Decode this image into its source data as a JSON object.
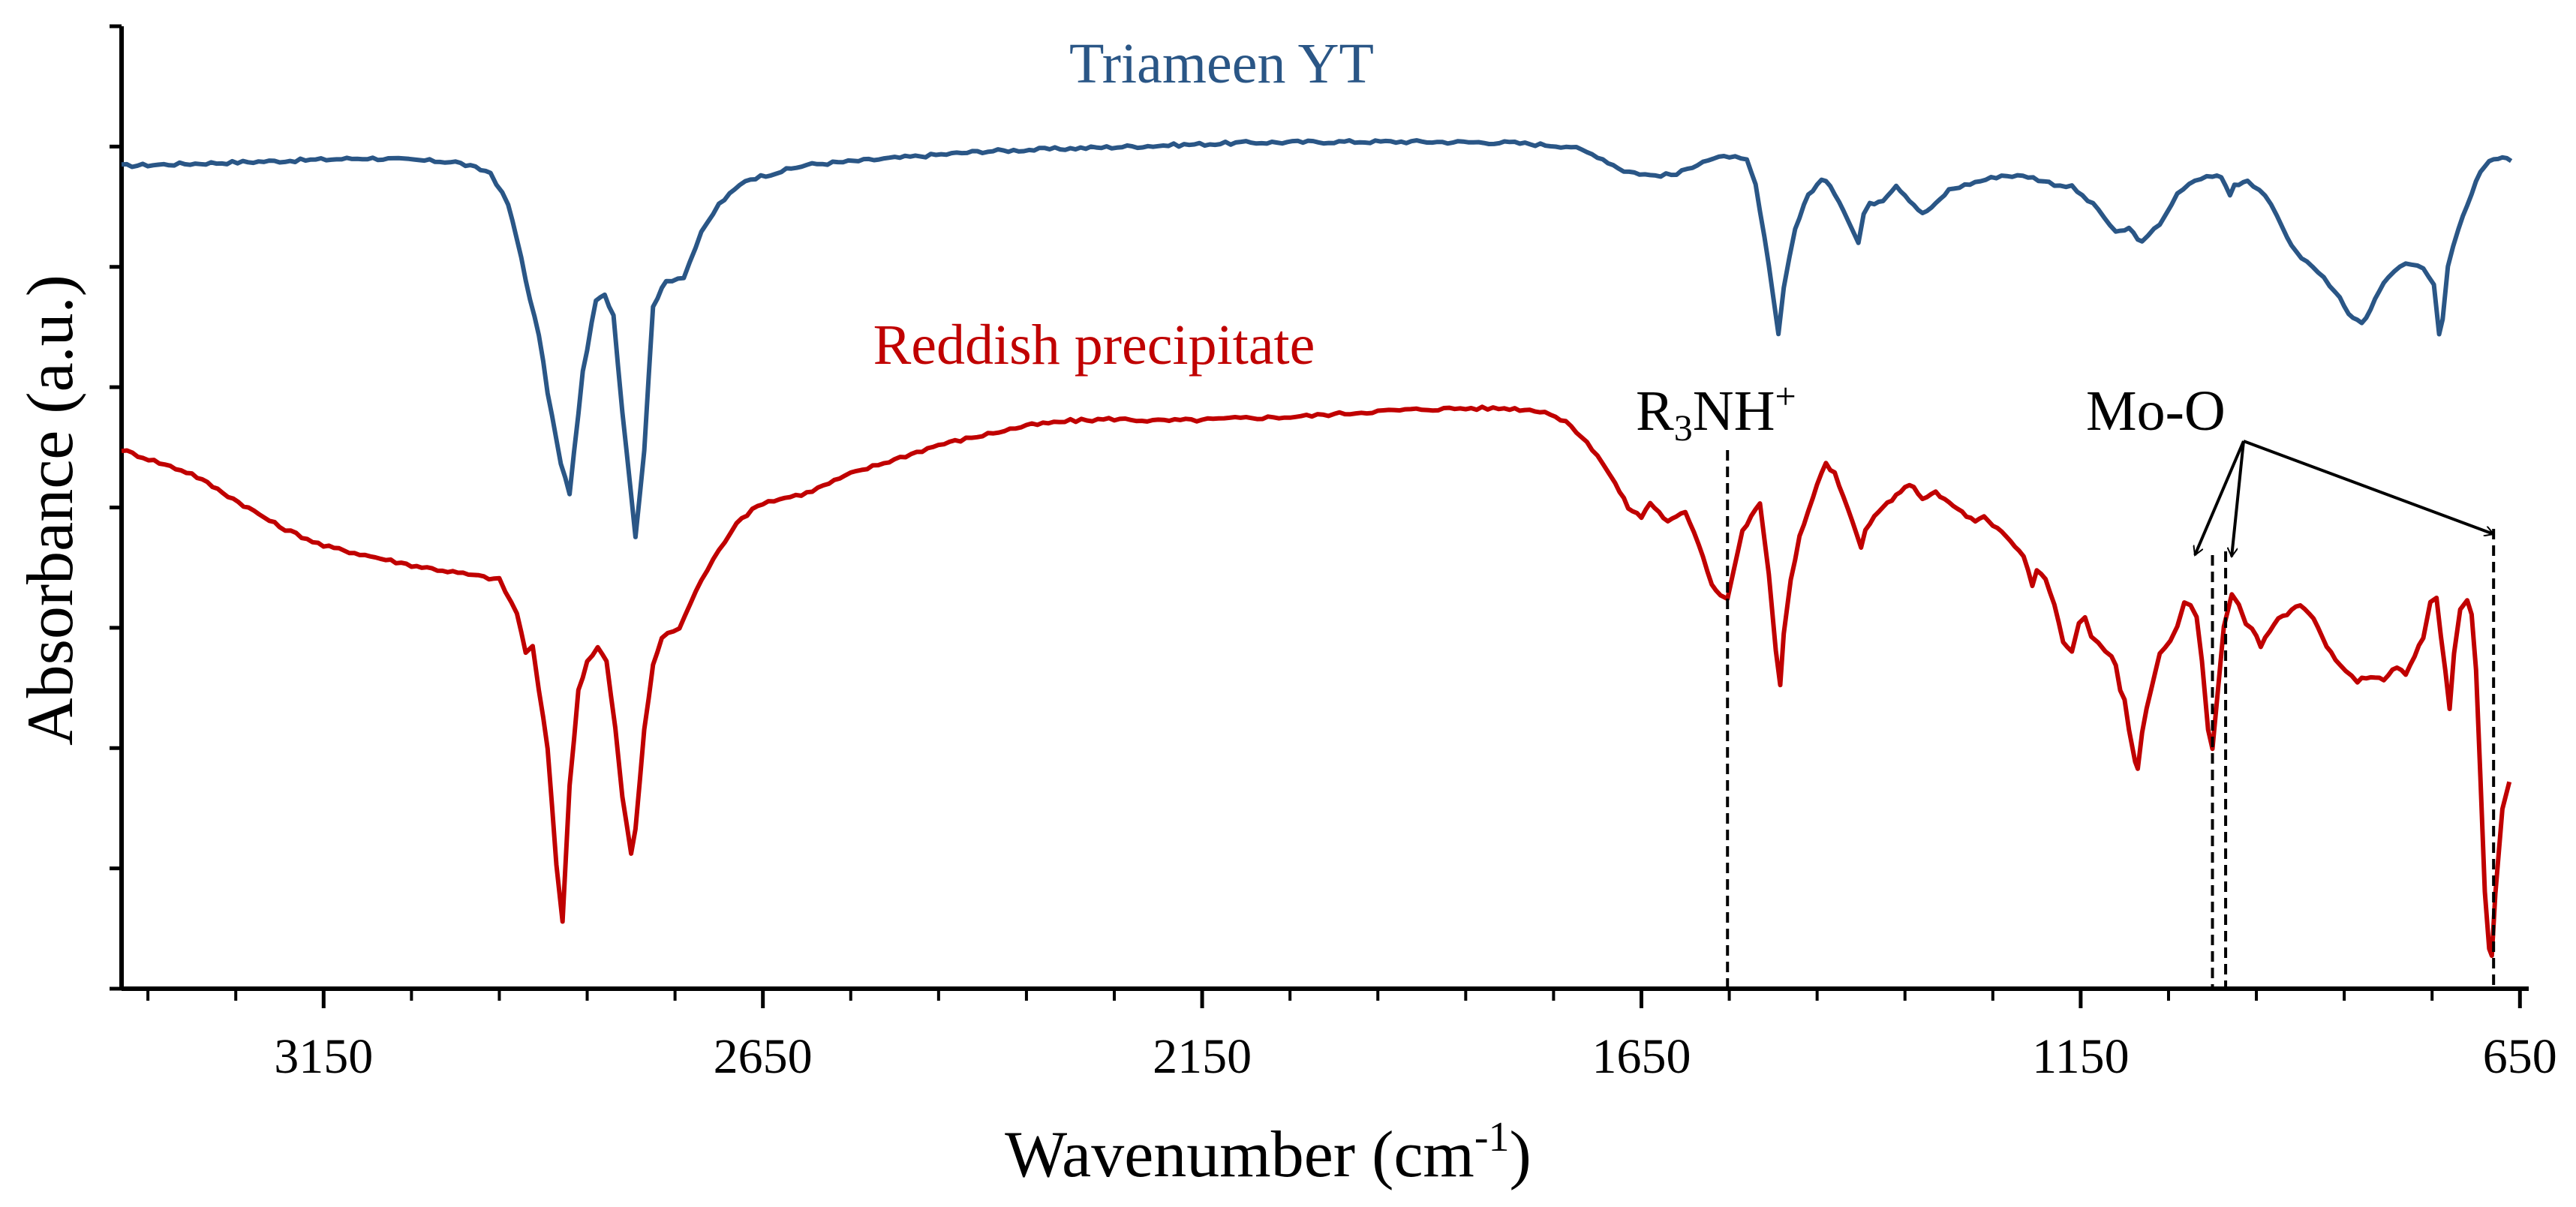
{
  "chart_data": {
    "type": "line",
    "title": "",
    "xlabel": "Wavenumber (cm",
    "xlabel_sup": "-1",
    "xlabel_end": ")",
    "ylabel": "Absorbance (a.u.)",
    "xlim": [
      3380,
      640
    ],
    "x_reversed": true,
    "ylim": [
      0,
      100
    ],
    "x_ticks": [
      3150,
      2650,
      2150,
      1650,
      1150,
      650
    ],
    "x_minor_step": 100,
    "y_ticks": [
      0,
      12.5,
      25,
      37.5,
      50,
      62.5,
      75,
      87.5,
      100
    ],
    "y_tick_labels": false,
    "grid": false,
    "series": [
      {
        "name": "Triameen YT",
        "color": "#2a5686",
        "points": [
          [
            3380,
            85.5
          ],
          [
            3200,
            86.0
          ],
          [
            3100,
            86.3
          ],
          [
            3000,
            85.9
          ],
          [
            2960,
            84.8
          ],
          [
            2940,
            81.5
          ],
          [
            2925,
            76.0
          ],
          [
            2915,
            71.5
          ],
          [
            2905,
            68.0
          ],
          [
            2895,
            62.0
          ],
          [
            2880,
            54.5
          ],
          [
            2870,
            51.5
          ],
          [
            2855,
            64.0
          ],
          [
            2840,
            71.5
          ],
          [
            2830,
            72.0
          ],
          [
            2820,
            70.0
          ],
          [
            2810,
            60.0
          ],
          [
            2800,
            51.5
          ],
          [
            2795,
            47.0
          ],
          [
            2785,
            56.0
          ],
          [
            2775,
            71.0
          ],
          [
            2760,
            73.5
          ],
          [
            2740,
            74.0
          ],
          [
            2720,
            78.5
          ],
          [
            2700,
            81.5
          ],
          [
            2670,
            84.0
          ],
          [
            2600,
            85.6
          ],
          [
            2500,
            86.3
          ],
          [
            2400,
            87.0
          ],
          [
            2300,
            87.3
          ],
          [
            2200,
            87.6
          ],
          [
            2100,
            87.9
          ],
          [
            2000,
            88.0
          ],
          [
            1900,
            88.0
          ],
          [
            1800,
            87.9
          ],
          [
            1730,
            87.5
          ],
          [
            1700,
            86.5
          ],
          [
            1670,
            85.0
          ],
          [
            1640,
            84.5
          ],
          [
            1610,
            84.6
          ],
          [
            1580,
            86.0
          ],
          [
            1550,
            86.5
          ],
          [
            1530,
            86.0
          ],
          [
            1520,
            83.5
          ],
          [
            1510,
            78.0
          ],
          [
            1500,
            72.0
          ],
          [
            1494,
            68.0
          ],
          [
            1488,
            73.0
          ],
          [
            1475,
            79.0
          ],
          [
            1460,
            82.5
          ],
          [
            1445,
            84.0
          ],
          [
            1435,
            83.5
          ],
          [
            1420,
            81.0
          ],
          [
            1408,
            78.5
          ],
          [
            1403,
            77.5
          ],
          [
            1397,
            80.5
          ],
          [
            1390,
            81.5
          ],
          [
            1375,
            82.0
          ],
          [
            1360,
            83.5
          ],
          [
            1345,
            82.0
          ],
          [
            1330,
            80.5
          ],
          [
            1315,
            81.5
          ],
          [
            1300,
            83.0
          ],
          [
            1270,
            83.8
          ],
          [
            1240,
            84.5
          ],
          [
            1210,
            84.4
          ],
          [
            1180,
            83.6
          ],
          [
            1160,
            83.3
          ],
          [
            1130,
            81.0
          ],
          [
            1110,
            78.5
          ],
          [
            1095,
            79.0
          ],
          [
            1080,
            77.5
          ],
          [
            1060,
            79.5
          ],
          [
            1040,
            82.5
          ],
          [
            1020,
            84.0
          ],
          [
            1000,
            84.5
          ],
          [
            990,
            84.3
          ],
          [
            980,
            82.5
          ],
          [
            975,
            83.5
          ],
          [
            960,
            84.0
          ],
          [
            940,
            82.5
          ],
          [
            920,
            79.0
          ],
          [
            905,
            76.5
          ],
          [
            880,
            74.5
          ],
          [
            860,
            72.5
          ],
          [
            845,
            70.0
          ],
          [
            830,
            69.0
          ],
          [
            815,
            71.5
          ],
          [
            800,
            74.0
          ],
          [
            780,
            75.5
          ],
          [
            760,
            75.0
          ],
          [
            748,
            73.0
          ],
          [
            742,
            68.0
          ],
          [
            738,
            69.5
          ],
          [
            732,
            75.0
          ],
          [
            720,
            79.0
          ],
          [
            705,
            82.5
          ],
          [
            695,
            85.0
          ],
          [
            685,
            86.0
          ],
          [
            670,
            86.3
          ],
          [
            660,
            86.0
          ]
        ]
      },
      {
        "name": "Reddish precipitate",
        "color": "#c00000",
        "points": [
          [
            3380,
            56.0
          ],
          [
            3300,
            53.5
          ],
          [
            3200,
            48.0
          ],
          [
            3150,
            46.0
          ],
          [
            3050,
            44.0
          ],
          [
            2950,
            42.5
          ],
          [
            2930,
            39.0
          ],
          [
            2920,
            35.0
          ],
          [
            2912,
            35.5
          ],
          [
            2905,
            31.0
          ],
          [
            2895,
            25.0
          ],
          [
            2885,
            13.0
          ],
          [
            2878,
            7.0
          ],
          [
            2870,
            21.0
          ],
          [
            2860,
            31.0
          ],
          [
            2850,
            34.0
          ],
          [
            2838,
            35.5
          ],
          [
            2828,
            34.0
          ],
          [
            2818,
            27.0
          ],
          [
            2810,
            20.0
          ],
          [
            2800,
            14.0
          ],
          [
            2795,
            16.5
          ],
          [
            2785,
            27.0
          ],
          [
            2775,
            33.5
          ],
          [
            2765,
            36.5
          ],
          [
            2745,
            37.5
          ],
          [
            2720,
            42.5
          ],
          [
            2700,
            45.5
          ],
          [
            2680,
            48.5
          ],
          [
            2650,
            50.5
          ],
          [
            2600,
            51.5
          ],
          [
            2550,
            53.5
          ],
          [
            2500,
            55.0
          ],
          [
            2450,
            56.5
          ],
          [
            2400,
            57.5
          ],
          [
            2350,
            58.5
          ],
          [
            2300,
            59.0
          ],
          [
            2250,
            59.2
          ],
          [
            2200,
            59.0
          ],
          [
            2150,
            59.1
          ],
          [
            2100,
            59.3
          ],
          [
            2050,
            59.4
          ],
          [
            2000,
            59.7
          ],
          [
            1950,
            60.0
          ],
          [
            1900,
            60.2
          ],
          [
            1850,
            60.3
          ],
          [
            1800,
            60.3
          ],
          [
            1760,
            60.0
          ],
          [
            1730,
            58.5
          ],
          [
            1700,
            55.5
          ],
          [
            1680,
            52.5
          ],
          [
            1665,
            50.0
          ],
          [
            1650,
            49.0
          ],
          [
            1640,
            50.5
          ],
          [
            1630,
            49.5
          ],
          [
            1620,
            48.5
          ],
          [
            1610,
            49.0
          ],
          [
            1600,
            49.5
          ],
          [
            1590,
            47.5
          ],
          [
            1580,
            45.0
          ],
          [
            1570,
            42.0
          ],
          [
            1560,
            41.0
          ],
          [
            1552,
            40.5
          ],
          [
            1545,
            43.5
          ],
          [
            1535,
            47.5
          ],
          [
            1525,
            49.0
          ],
          [
            1515,
            50.5
          ],
          [
            1505,
            43.0
          ],
          [
            1497,
            35.0
          ],
          [
            1492,
            31.5
          ],
          [
            1488,
            37.0
          ],
          [
            1480,
            42.5
          ],
          [
            1470,
            47.0
          ],
          [
            1460,
            49.5
          ],
          [
            1450,
            52.5
          ],
          [
            1440,
            54.5
          ],
          [
            1430,
            53.5
          ],
          [
            1420,
            51.0
          ],
          [
            1410,
            48.5
          ],
          [
            1400,
            46.0
          ],
          [
            1395,
            47.5
          ],
          [
            1385,
            49.0
          ],
          [
            1370,
            50.5
          ],
          [
            1355,
            51.5
          ],
          [
            1345,
            52.5
          ],
          [
            1330,
            51.0
          ],
          [
            1315,
            51.5
          ],
          [
            1300,
            50.5
          ],
          [
            1285,
            49.5
          ],
          [
            1270,
            48.5
          ],
          [
            1260,
            49.0
          ],
          [
            1250,
            48.0
          ],
          [
            1240,
            47.5
          ],
          [
            1230,
            46.5
          ],
          [
            1215,
            45.0
          ],
          [
            1205,
            42.0
          ],
          [
            1200,
            43.5
          ],
          [
            1190,
            42.5
          ],
          [
            1180,
            40.0
          ],
          [
            1170,
            36.0
          ],
          [
            1160,
            35.0
          ],
          [
            1152,
            38.0
          ],
          [
            1145,
            38.5
          ],
          [
            1138,
            36.5
          ],
          [
            1130,
            36.0
          ],
          [
            1122,
            35.0
          ],
          [
            1115,
            34.5
          ],
          [
            1110,
            33.5
          ],
          [
            1105,
            31.0
          ],
          [
            1100,
            30.0
          ],
          [
            1095,
            27.0
          ],
          [
            1088,
            23.5
          ],
          [
            1085,
            23.0
          ],
          [
            1080,
            26.5
          ],
          [
            1075,
            29.0
          ],
          [
            1060,
            35.0
          ],
          [
            1048,
            36.0
          ],
          [
            1040,
            37.5
          ],
          [
            1032,
            40.0
          ],
          [
            1025,
            40.0
          ],
          [
            1018,
            38.5
          ],
          [
            1012,
            34.0
          ],
          [
            1005,
            27.0
          ],
          [
            1000,
            25.0
          ],
          [
            995,
            30.0
          ],
          [
            987,
            37.5
          ],
          [
            978,
            41.0
          ],
          [
            970,
            40.0
          ],
          [
            962,
            38.0
          ],
          [
            955,
            37.5
          ],
          [
            945,
            35.5
          ],
          [
            930,
            38.0
          ],
          [
            915,
            39.0
          ],
          [
            900,
            40.0
          ],
          [
            885,
            38.5
          ],
          [
            870,
            35.5
          ],
          [
            855,
            33.5
          ],
          [
            835,
            32.0
          ],
          [
            820,
            32.5
          ],
          [
            805,
            32.0
          ],
          [
            790,
            33.5
          ],
          [
            780,
            32.5
          ],
          [
            770,
            34.5
          ],
          [
            760,
            36.5
          ],
          [
            752,
            40.0
          ],
          [
            745,
            40.5
          ],
          [
            740,
            36.5
          ],
          [
            735,
            33.0
          ],
          [
            730,
            29.0
          ],
          [
            725,
            35.0
          ],
          [
            718,
            39.5
          ],
          [
            710,
            40.5
          ],
          [
            705,
            39.0
          ],
          [
            700,
            33.0
          ],
          [
            695,
            22.0
          ],
          [
            690,
            10.0
          ],
          [
            685,
            4.0
          ],
          [
            682,
            3.6
          ],
          [
            678,
            10.0
          ],
          [
            670,
            18.5
          ],
          [
            662,
            21.5
          ]
        ]
      }
    ],
    "annotations": {
      "series_label_1": "Triameen YT",
      "series_label_2": "Reddish precipitate",
      "amine_label_base": "R",
      "amine_label_sub": "3",
      "amine_label_rest": "NH",
      "amine_label_sup": "+",
      "amine_marker_x": 1552,
      "mo_label": "Mo-O",
      "mo_marker_x": [
        1000,
        985,
        680
      ],
      "mo_arrow_targets": [
        1020,
        985,
        680
      ]
    }
  }
}
